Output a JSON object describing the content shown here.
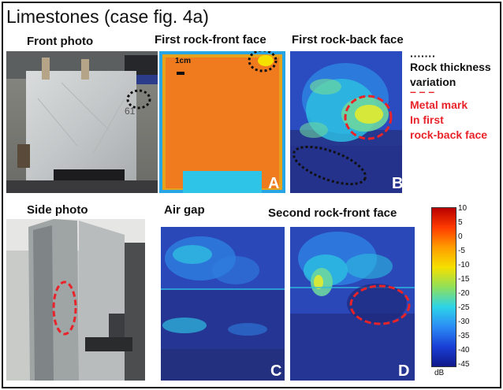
{
  "title": "Limestones (case fig. 4a)",
  "labels": {
    "front_photo": "Front photo",
    "side_photo": "Side photo",
    "first_front": "First rock-front face",
    "first_back": "First rock-back face",
    "air_gap": "Air gap",
    "second_front": "Second rock-front face"
  },
  "legend": {
    "dotted_symbol": "·······",
    "dotted_line1": "Rock thickness",
    "dotted_line2": "variation",
    "dashed_symbol": "– – –",
    "dashed_line1": "Metal mark",
    "dashed_line2": "In first",
    "dashed_line3": "rock-back face"
  },
  "scale_text": "1cm",
  "panel_letters": {
    "a": "A",
    "b": "B",
    "c": "C",
    "d": "D"
  },
  "colorbar": {
    "ticks": [
      "10",
      "5",
      "0",
      "-5",
      "-10",
      "-15",
      "-20",
      "-25",
      "-30",
      "-35",
      "-40",
      "-45"
    ],
    "unit": "dB",
    "colors": [
      "#b80000",
      "#ff3c00",
      "#ff9e00",
      "#f5e000",
      "#8fe05a",
      "#2dd3e8",
      "#2b8cf5",
      "#1a3fd6",
      "#10198a"
    ]
  },
  "accent": {
    "dotted": "#111111",
    "dashed": "#e8232a"
  }
}
